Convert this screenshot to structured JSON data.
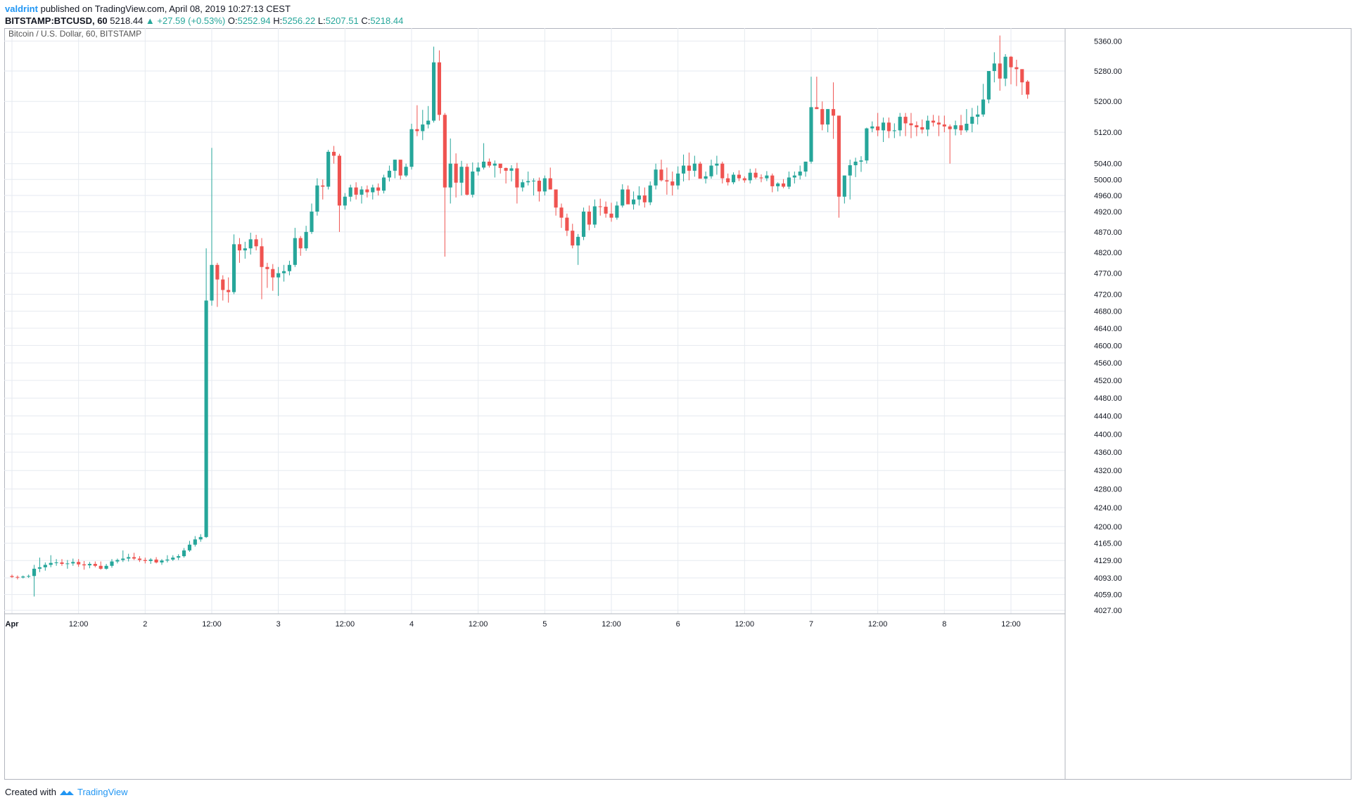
{
  "header": {
    "author": "valdrint",
    "published_text": "published on TradingView.com, April 08, 2019 10:27:13 CEST",
    "symbol": "BITSTAMP:BTCUSD, 60",
    "last": "5218.44",
    "change": "▲ +27.59 (+0.53%)",
    "o_label": "O:",
    "o_value": "5252.94",
    "h_label": "H:",
    "h_value": "5256.22",
    "l_label": "L:",
    "l_value": "5207.51",
    "c_label": "C:",
    "c_value": "5218.44"
  },
  "footer": {
    "created_with": "Created with",
    "brand": "TradingView"
  },
  "colors": {
    "up": "#26a69a",
    "down": "#ef5350",
    "grid": "#e6eaf0",
    "axis_text": "#131722"
  },
  "chart_data": {
    "type": "candlestick",
    "title": "Bitcoin / U.S. Dollar, 60, BITSTAMP",
    "scale": "log",
    "y_ticks": [
      5360,
      5280,
      5200,
      5120,
      5040,
      5000,
      4960,
      4920,
      4870,
      4820,
      4770,
      4720,
      4680,
      4640,
      4600,
      4560,
      4520,
      4480,
      4440,
      4400,
      4360,
      4320,
      4280,
      4240,
      4200,
      4165,
      4129,
      4093,
      4059,
      4027
    ],
    "x_ticks": [
      "Apr",
      "12:00",
      "2",
      "12:00",
      "3",
      "12:00",
      "4",
      "12:00",
      "5",
      "12:00",
      "6",
      "12:00",
      "7",
      "12:00",
      "8",
      "12:00"
    ],
    "x_tick_hours": [
      0,
      12,
      24,
      36,
      48,
      60,
      72,
      84,
      96,
      108,
      120,
      132,
      144,
      156,
      168,
      180
    ],
    "ylim": [
      4020,
      5395
    ],
    "candles_ohlc": [
      [
        4097,
        4100,
        4093,
        4095
      ],
      [
        4095,
        4098,
        4090,
        4094
      ],
      [
        4094,
        4098,
        4092,
        4096
      ],
      [
        4096,
        4100,
        4093,
        4097
      ],
      [
        4097,
        4120,
        4055,
        4112
      ],
      [
        4112,
        4135,
        4105,
        4115
      ],
      [
        4115,
        4125,
        4108,
        4120
      ],
      [
        4120,
        4140,
        4115,
        4124
      ],
      [
        4124,
        4132,
        4118,
        4125
      ],
      [
        4125,
        4132,
        4118,
        4122
      ],
      [
        4122,
        4130,
        4112,
        4123
      ],
      [
        4123,
        4133,
        4118,
        4126
      ],
      [
        4126,
        4132,
        4116,
        4121
      ],
      [
        4121,
        4128,
        4110,
        4119
      ],
      [
        4119,
        4126,
        4113,
        4122
      ],
      [
        4122,
        4127,
        4115,
        4118
      ],
      [
        4118,
        4127,
        4110,
        4112
      ],
      [
        4112,
        4122,
        4110,
        4118
      ],
      [
        4118,
        4132,
        4114,
        4127
      ],
      [
        4127,
        4133,
        4123,
        4130
      ],
      [
        4130,
        4150,
        4126,
        4133
      ],
      [
        4133,
        4143,
        4127,
        4136
      ],
      [
        4136,
        4145,
        4130,
        4133
      ],
      [
        4133,
        4138,
        4126,
        4130
      ],
      [
        4130,
        4135,
        4123,
        4128
      ],
      [
        4128,
        4134,
        4122,
        4131
      ],
      [
        4131,
        4136,
        4123,
        4125
      ],
      [
        4125,
        4132,
        4120,
        4129
      ],
      [
        4129,
        4140,
        4125,
        4131
      ],
      [
        4131,
        4140,
        4128,
        4135
      ],
      [
        4135,
        4142,
        4130,
        4138
      ],
      [
        4138,
        4155,
        4135,
        4150
      ],
      [
        4150,
        4170,
        4147,
        4162
      ],
      [
        4162,
        4180,
        4158,
        4173
      ],
      [
        4173,
        4184,
        4168,
        4178
      ],
      [
        4178,
        4830,
        4176,
        4705
      ],
      [
        4705,
        5080,
        4693,
        4790
      ],
      [
        4790,
        4795,
        4690,
        4755
      ],
      [
        4755,
        4765,
        4705,
        4730
      ],
      [
        4730,
        4760,
        4700,
        4725
      ],
      [
        4725,
        4864,
        4720,
        4840
      ],
      [
        4840,
        4855,
        4795,
        4825
      ],
      [
        4825,
        4846,
        4805,
        4830
      ],
      [
        4830,
        4868,
        4815,
        4852
      ],
      [
        4852,
        4863,
        4825,
        4835
      ],
      [
        4835,
        4855,
        4708,
        4785
      ],
      [
        4785,
        4795,
        4735,
        4780
      ],
      [
        4780,
        4792,
        4728,
        4760
      ],
      [
        4760,
        4785,
        4716,
        4770
      ],
      [
        4770,
        4790,
        4750,
        4775
      ],
      [
        4775,
        4800,
        4765,
        4790
      ],
      [
        4790,
        4880,
        4785,
        4855
      ],
      [
        4855,
        4860,
        4812,
        4830
      ],
      [
        4830,
        4885,
        4824,
        4870
      ],
      [
        4870,
        4940,
        4865,
        4920
      ],
      [
        4920,
        5003,
        4910,
        4985
      ],
      [
        4985,
        5000,
        4950,
        4982
      ],
      [
        4982,
        5075,
        4975,
        5070
      ],
      [
        5070,
        5085,
        5040,
        5060
      ],
      [
        5060,
        5065,
        4870,
        4935
      ],
      [
        4935,
        4966,
        4925,
        4957
      ],
      [
        4957,
        4987,
        4945,
        4980
      ],
      [
        4980,
        4993,
        4950,
        4962
      ],
      [
        4962,
        4983,
        4940,
        4975
      ],
      [
        4975,
        4985,
        4955,
        4968
      ],
      [
        4968,
        4987,
        4950,
        4980
      ],
      [
        4980,
        4990,
        4960,
        4972
      ],
      [
        4972,
        5012,
        4965,
        5005
      ],
      [
        5005,
        5035,
        4995,
        5022
      ],
      [
        5022,
        5050,
        5003,
        5050
      ],
      [
        5050,
        5023,
        5000,
        5010
      ],
      [
        5010,
        5040,
        5006,
        5032
      ],
      [
        5032,
        5142,
        5025,
        5128
      ],
      [
        5128,
        5190,
        5110,
        5123
      ],
      [
        5123,
        5178,
        5100,
        5140
      ],
      [
        5140,
        5188,
        5130,
        5150
      ],
      [
        5150,
        5345,
        5145,
        5303
      ],
      [
        5303,
        5335,
        5150,
        5165
      ],
      [
        5165,
        5170,
        4810,
        4980
      ],
      [
        4980,
        5104,
        4940,
        5040
      ],
      [
        5040,
        5066,
        4955,
        4992
      ],
      [
        4992,
        5047,
        4960,
        5032
      ],
      [
        5032,
        5040,
        4960,
        4962
      ],
      [
        4962,
        5043,
        4955,
        5020
      ],
      [
        5020,
        5043,
        5010,
        5030
      ],
      [
        5030,
        5092,
        5025,
        5045
      ],
      [
        5045,
        5053,
        5030,
        5035
      ],
      [
        5035,
        5048,
        5005,
        5040
      ],
      [
        5040,
        5036,
        5015,
        5029
      ],
      [
        5029,
        5030,
        4990,
        5022
      ],
      [
        5022,
        5036,
        4995,
        5028
      ],
      [
        5028,
        5042,
        4940,
        4980
      ],
      [
        4980,
        5000,
        4970,
        4993
      ],
      [
        4993,
        5020,
        4985,
        4996
      ],
      [
        4996,
        5003,
        4960,
        4997
      ],
      [
        4997,
        5005,
        4945,
        4970
      ],
      [
        4970,
        5010,
        4960,
        5003
      ],
      [
        5003,
        5030,
        4988,
        4975
      ],
      [
        4975,
        4970,
        4910,
        4930
      ],
      [
        4930,
        4940,
        4880,
        4905
      ],
      [
        4905,
        4915,
        4860,
        4873
      ],
      [
        4873,
        4890,
        4830,
        4837
      ],
      [
        4837,
        4865,
        4790,
        4858
      ],
      [
        4858,
        4930,
        4850,
        4920
      ],
      [
        4920,
        4935,
        4874,
        4888
      ],
      [
        4888,
        4950,
        4880,
        4933
      ],
      [
        4933,
        4952,
        4910,
        4932
      ],
      [
        4932,
        4945,
        4905,
        4915
      ],
      [
        4915,
        4942,
        4895,
        4905
      ],
      [
        4905,
        4945,
        4900,
        4935
      ],
      [
        4935,
        4988,
        4930,
        4975
      ],
      [
        4975,
        4985,
        4942,
        4938
      ],
      [
        4938,
        4970,
        4925,
        4950
      ],
      [
        4950,
        4983,
        4935,
        4960
      ],
      [
        4960,
        4980,
        4930,
        4943
      ],
      [
        4943,
        4995,
        4936,
        4985
      ],
      [
        4985,
        5040,
        4975,
        5025
      ],
      [
        5025,
        5050,
        4995,
        4998
      ],
      [
        4998,
        5030,
        4962,
        4995
      ],
      [
        4995,
        5020,
        4960,
        4985
      ],
      [
        4985,
        5033,
        4975,
        5015
      ],
      [
        5015,
        5063,
        4995,
        5035
      ],
      [
        5035,
        5068,
        4998,
        5022
      ],
      [
        5022,
        5060,
        5007,
        5040
      ],
      [
        5040,
        5045,
        5005,
        5002
      ],
      [
        5002,
        5020,
        4990,
        5008
      ],
      [
        5008,
        5050,
        5002,
        5035
      ],
      [
        5035,
        5060,
        5012,
        5040
      ],
      [
        5040,
        5045,
        4990,
        5003
      ],
      [
        5003,
        5015,
        4985,
        4993
      ],
      [
        4993,
        5018,
        4988,
        5012
      ],
      [
        5012,
        5023,
        4996,
        5003
      ],
      [
        5003,
        5008,
        4992,
        4998
      ],
      [
        4998,
        5027,
        4990,
        5017
      ],
      [
        5017,
        5028,
        5001,
        5005
      ],
      [
        5005,
        5013,
        4993,
        5003
      ],
      [
        5003,
        5021,
        4996,
        5010
      ],
      [
        5010,
        5015,
        4968,
        4983
      ],
      [
        4983,
        4993,
        4970,
        4990
      ],
      [
        4990,
        5001,
        4978,
        4982
      ],
      [
        4982,
        5020,
        4976,
        5005
      ],
      [
        5005,
        5020,
        4990,
        5010
      ],
      [
        5010,
        5035,
        5000,
        5020
      ],
      [
        5020,
        5045,
        5007,
        5045
      ],
      [
        5045,
        5265,
        5040,
        5185
      ],
      [
        5185,
        5265,
        5180,
        5180
      ],
      [
        5180,
        5200,
        5125,
        5140
      ],
      [
        5140,
        5180,
        5120,
        5180
      ],
      [
        5180,
        5250,
        5103,
        5163
      ],
      [
        5163,
        5160,
        4905,
        4957
      ],
      [
        4957,
        5010,
        4940,
        5010
      ],
      [
        5010,
        5050,
        4950,
        5036
      ],
      [
        5036,
        5055,
        5006,
        5045
      ],
      [
        5045,
        5059,
        5019,
        5048
      ],
      [
        5048,
        5132,
        5040,
        5130
      ],
      [
        5130,
        5148,
        5120,
        5135
      ],
      [
        5135,
        5170,
        5110,
        5125
      ],
      [
        5125,
        5158,
        5095,
        5145
      ],
      [
        5145,
        5158,
        5105,
        5123
      ],
      [
        5123,
        5143,
        5105,
        5125
      ],
      [
        5125,
        5170,
        5110,
        5160
      ],
      [
        5160,
        5170,
        5110,
        5143
      ],
      [
        5143,
        5170,
        5105,
        5138
      ],
      [
        5138,
        5148,
        5110,
        5133
      ],
      [
        5133,
        5153,
        5117,
        5127
      ],
      [
        5127,
        5163,
        5110,
        5150
      ],
      [
        5150,
        5165,
        5135,
        5145
      ],
      [
        5145,
        5163,
        5110,
        5140
      ],
      [
        5140,
        5163,
        5120,
        5135
      ],
      [
        5135,
        5140,
        5040,
        5128
      ],
      [
        5128,
        5150,
        5112,
        5138
      ],
      [
        5138,
        5165,
        5113,
        5125
      ],
      [
        5125,
        5180,
        5120,
        5142
      ],
      [
        5142,
        5183,
        5120,
        5160
      ],
      [
        5160,
        5189,
        5140,
        5166
      ],
      [
        5166,
        5246,
        5160,
        5205
      ],
      [
        5205,
        5270,
        5195,
        5280
      ],
      [
        5280,
        5330,
        5250,
        5300
      ],
      [
        5300,
        5375,
        5228,
        5260
      ],
      [
        5260,
        5325,
        5240,
        5318
      ],
      [
        5318,
        5320,
        5245,
        5290
      ],
      [
        5290,
        5310,
        5240,
        5285
      ],
      [
        5285,
        5282,
        5217,
        5250
      ],
      [
        5252,
        5256,
        5207,
        5218
      ]
    ]
  }
}
